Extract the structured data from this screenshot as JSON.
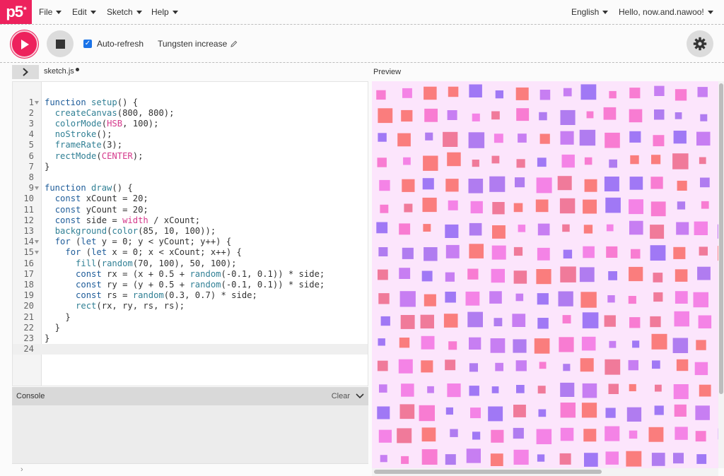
{
  "app": {
    "logo_text": "p5",
    "logo_mark": "*",
    "brand_color": "#ed225d"
  },
  "menu": {
    "items": [
      {
        "label": "File"
      },
      {
        "label": "Edit"
      },
      {
        "label": "Sketch"
      },
      {
        "label": "Help"
      }
    ],
    "language": "English",
    "user_greeting": "Hello, now.and.nawoo!"
  },
  "toolbar": {
    "play_icon": "play-icon",
    "stop_icon": "stop-icon",
    "auto_refresh_label": "Auto-refresh",
    "auto_refresh_checked": true,
    "sketch_name": "Tungsten increase",
    "edit_icon": "pencil-icon",
    "settings_icon": "gear-icon"
  },
  "editor": {
    "file_name": "sketch.js",
    "unsaved": true,
    "current_line": 24,
    "lines": [
      {
        "n": "1",
        "fold": true,
        "text": "function setup() {"
      },
      {
        "n": "2",
        "fold": false,
        "text": "  createCanvas(800, 800);"
      },
      {
        "n": "3",
        "fold": false,
        "text": "  colorMode(HSB, 100);"
      },
      {
        "n": "4",
        "fold": false,
        "text": "  noStroke();"
      },
      {
        "n": "5",
        "fold": false,
        "text": "  frameRate(3);"
      },
      {
        "n": "6",
        "fold": false,
        "text": "  rectMode(CENTER);"
      },
      {
        "n": "7",
        "fold": false,
        "text": "}"
      },
      {
        "n": "8",
        "fold": false,
        "text": ""
      },
      {
        "n": "9",
        "fold": true,
        "text": "function draw() {"
      },
      {
        "n": "10",
        "fold": false,
        "text": "  const xCount = 20;"
      },
      {
        "n": "11",
        "fold": false,
        "text": "  const yCount = 20;"
      },
      {
        "n": "12",
        "fold": false,
        "text": "  const side = width / xCount;"
      },
      {
        "n": "13",
        "fold": false,
        "text": "  background(color(85, 10, 100));"
      },
      {
        "n": "14",
        "fold": true,
        "text": "  for (let y = 0; y < yCount; y++) {"
      },
      {
        "n": "15",
        "fold": true,
        "text": "    for (let x = 0; x < xCount; x++) {"
      },
      {
        "n": "16",
        "fold": false,
        "text": "      fill(random(70, 100), 50, 100);"
      },
      {
        "n": "17",
        "fold": false,
        "text": "      const rx = (x + 0.5 + random(-0.1, 0.1)) * side;"
      },
      {
        "n": "18",
        "fold": false,
        "text": "      const ry = (y + 0.5 + random(-0.1, 0.1)) * side;"
      },
      {
        "n": "19",
        "fold": false,
        "text": "      const rs = random(0.3, 0.7) * side;"
      },
      {
        "n": "20",
        "fold": false,
        "text": "      rect(rx, ry, rs, rs);"
      },
      {
        "n": "21",
        "fold": false,
        "text": "    }"
      },
      {
        "n": "22",
        "fold": false,
        "text": "  }"
      },
      {
        "n": "23",
        "fold": false,
        "text": "}"
      },
      {
        "n": "24",
        "fold": false,
        "text": ""
      }
    ]
  },
  "preview": {
    "label": "Preview",
    "background_color": "#fce5fc",
    "palette": [
      "#f07a9a",
      "#f87cd2",
      "#c77ef2",
      "#a078f5",
      "#fa7d7d",
      "#f483e6",
      "#b07cf0"
    ]
  },
  "console": {
    "label": "Console",
    "clear_label": "Clear",
    "collapse_icon": "chevron-down-icon",
    "prompt_icon": "chevron-right-icon",
    "prompt_symbol": "›"
  }
}
